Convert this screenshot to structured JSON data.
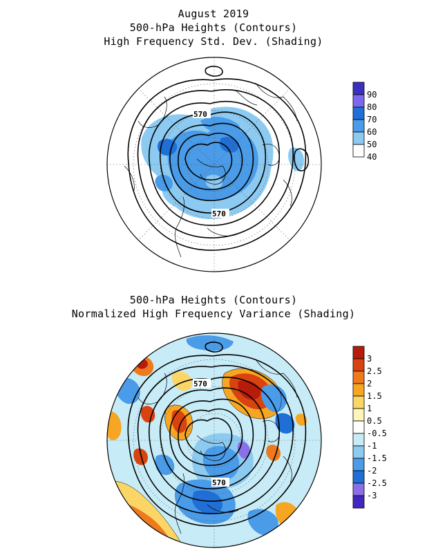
{
  "map1": {
    "title_lines": [
      "August 2019",
      "500-hPa Heights (Contours)",
      "High Frequency Std. Dev. (Shading)"
    ],
    "contour_labels": [
      "570",
      "570"
    ],
    "colorbar": {
      "labels": [
        "90",
        "80",
        "70",
        "60",
        "50",
        "40"
      ],
      "colors": [
        "#3b2fc0",
        "#7b68ee",
        "#1f6fd6",
        "#4a9be8",
        "#8ccaf2",
        "#ffffff"
      ]
    }
  },
  "map2": {
    "title_lines": [
      "500-hPa Heights (Contours)",
      "Normalized High Frequency Variance (Shading)"
    ],
    "contour_labels": [
      "570",
      "570"
    ],
    "colorbar": {
      "labels": [
        "3",
        "2.5",
        "2",
        "1.5",
        "1",
        "0.5",
        "-0.5",
        "-1",
        "-1.5",
        "-2",
        "-2.5",
        "-3"
      ],
      "colors": [
        "#b51c0c",
        "#d9430f",
        "#ee7a1d",
        "#f6a623",
        "#fbd667",
        "#fff5b8",
        "#ffffff",
        "#c7ecf7",
        "#8dcaf0",
        "#4a9be8",
        "#1f6fd6",
        "#8a6fe6",
        "#4326c2"
      ]
    }
  }
}
